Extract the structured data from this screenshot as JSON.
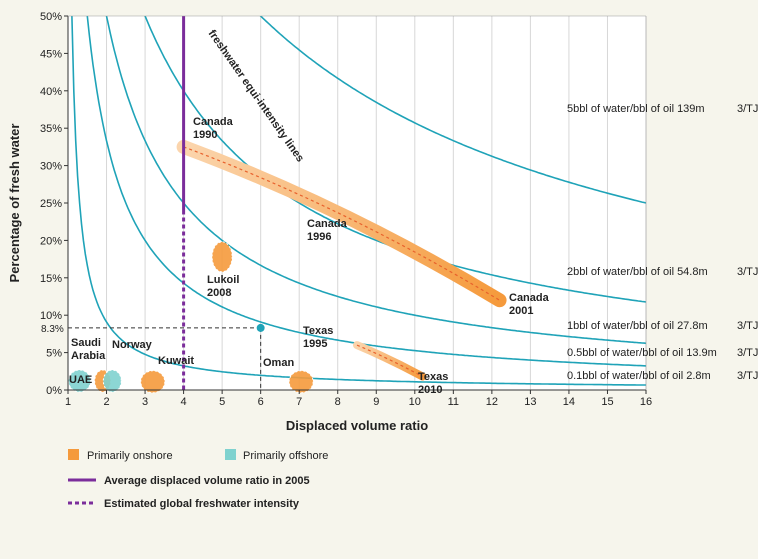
{
  "chart_data": {
    "type": "line",
    "title": "",
    "xlabel": "Displaced volume ratio",
    "ylabel": "Percentage of fresh water",
    "xlim": [
      1,
      16
    ],
    "ylim": [
      0,
      50
    ],
    "x_ticks": [
      "1",
      "2",
      "3",
      "4",
      "5",
      "6",
      "7",
      "8",
      "9",
      "10",
      "11",
      "12",
      "13",
      "14",
      "15",
      "16"
    ],
    "y_ticks": [
      "0%",
      "5%",
      "10%",
      "15%",
      "20%",
      "25%",
      "30%",
      "35%",
      "40%",
      "45%",
      "50%"
    ],
    "grid": "vertical",
    "curve_annotation": "freshwater equi-intensity lines",
    "equi_intensity_lines": [
      {
        "k": 5,
        "label": "5bbl of water/bbl of oil 139m",
        "unit": "3/TJ"
      },
      {
        "k": 2,
        "label": "2bbl of water/bbl of oil 54.8m",
        "unit": "3/TJ"
      },
      {
        "k": 1,
        "label": "1bbl of water/bbl of oil 27.8m",
        "unit": "3/TJ"
      },
      {
        "k": 0.5,
        "label": "0.5bbl of water/bbl of oil 13.9m",
        "unit": "3/TJ"
      },
      {
        "k": 0.1,
        "label": "0.1bbl of water/bbl of oil 2.8m",
        "unit": "3/TJ"
      }
    ],
    "average_ratio_2005": 4,
    "global_point": {
      "x": 6,
      "y": 8.3,
      "label": "8.3%"
    },
    "trends": [
      {
        "label": "Canada",
        "start": {
          "x": 4,
          "y": 32.5
        },
        "end": {
          "x": 12.2,
          "y": 12
        },
        "style": "onshore"
      },
      {
        "label": "Texas",
        "start": {
          "x": 8.5,
          "y": 6
        },
        "end": {
          "x": 10.2,
          "y": 1.8
        },
        "style": "onshore"
      }
    ],
    "points": [
      {
        "label": "Canada 1990",
        "x": 4,
        "y": 33
      },
      {
        "label": "Canada 1996",
        "x": 8,
        "y": 20
      },
      {
        "label": "Canada 2001",
        "x": 12,
        "y": 12
      },
      {
        "label": "Lukoil 2008",
        "x": 5,
        "y": 17.8,
        "type": "onshore"
      },
      {
        "label": "Texas 1995",
        "x": 8.5,
        "y": 6
      },
      {
        "label": "Texas 2010",
        "x": 10,
        "y": 2
      },
      {
        "label": "Oman",
        "x": 7,
        "y": 1,
        "type": "onshore"
      },
      {
        "label": "Kuwait",
        "x": 3.2,
        "y": 1,
        "type": "onshore"
      },
      {
        "label": "Norway",
        "x": 2.1,
        "y": 1,
        "type": "offshore"
      },
      {
        "label": "Saudi Arabia",
        "x": 1.9,
        "y": 1,
        "type": "onshore"
      },
      {
        "label": "UAE",
        "x": 1.3,
        "y": 1,
        "type": "offshore"
      }
    ],
    "colors": {
      "onshore": "#f59a3c",
      "offshore": "#7fd2cf",
      "curve": "#1fa3b8",
      "average": "#7b2d9b",
      "trend_light": "#fbd5ad"
    },
    "legend": {
      "position": "bottom-left",
      "onshore": "Primarily onshore",
      "offshore": "Primarily offshore",
      "average": "Average displaced volume ratio in 2005",
      "estimated": "Estimated global freshwater intensity"
    }
  }
}
